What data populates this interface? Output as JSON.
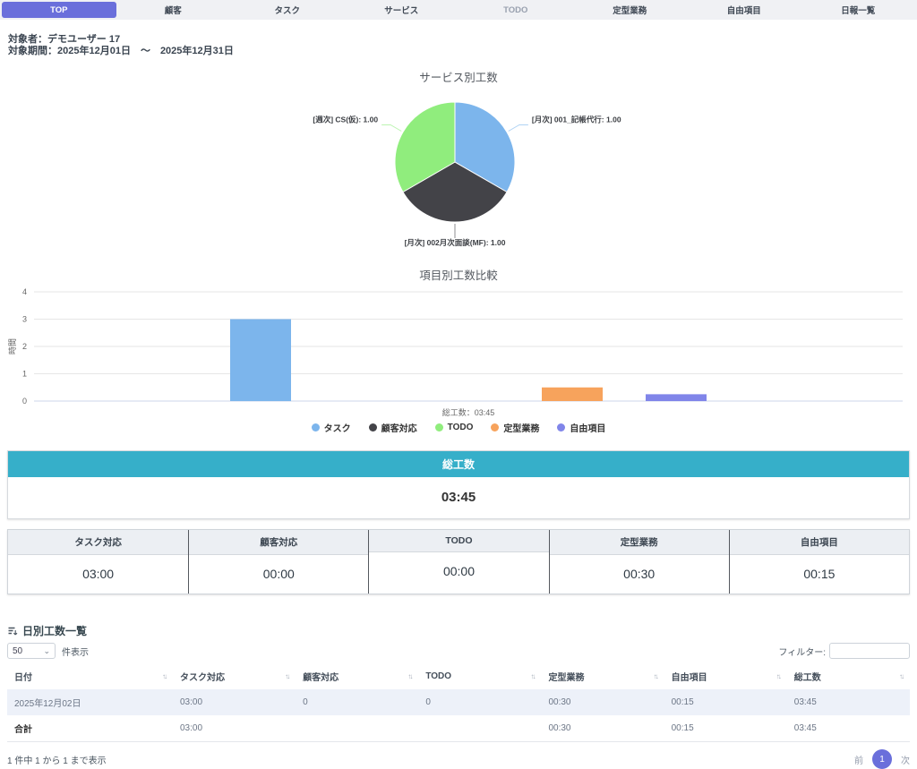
{
  "icons": {
    "sort": "↑↓",
    "chevron_down": "⌄"
  },
  "colors": {
    "accent": "#6a6fdb",
    "teal": "#36afc9",
    "row_alt": "#edf1f9"
  },
  "tabs": [
    {
      "label": "TOP",
      "active": true
    },
    {
      "label": "顧客",
      "active": false
    },
    {
      "label": "タスク",
      "active": false
    },
    {
      "label": "サービス",
      "active": false
    },
    {
      "label": "TODO",
      "active": false
    },
    {
      "label": "定型業務",
      "active": false
    },
    {
      "label": "自由項目",
      "active": false
    },
    {
      "label": "日報一覧",
      "active": false
    }
  ],
  "target": {
    "person": "対象者：デモユーザー 17",
    "period": "対象期間：2025年12月01日　〜　2025年12月31日"
  },
  "chart_data": [
    {
      "type": "pie",
      "title": "サービス別工数",
      "slices": [
        {
          "label": "[月次] 001_記帳代行: 1.00",
          "value": 1.0,
          "color": "#7cb5ec"
        },
        {
          "label": "[月次] 002月次面談(MF): 1.00",
          "value": 1.0,
          "color": "#434348"
        },
        {
          "label": "[週次] CS(仮): 1.00",
          "value": 1.0,
          "color": "#90ed7d"
        }
      ],
      "start_angle": 0,
      "direction": "clockwise"
    },
    {
      "type": "bar",
      "title": "項目別工数比較",
      "categories": [
        "総工数：03:45"
      ],
      "series": [
        {
          "name": "タスク",
          "values": [
            3
          ],
          "color": "#7cb5ec"
        },
        {
          "name": "顧客対応",
          "values": [
            0
          ],
          "color": "#434348"
        },
        {
          "name": "TODO",
          "values": [
            0
          ],
          "color": "#90ed7d"
        },
        {
          "name": "定型業務",
          "values": [
            0.5
          ],
          "color": "#f7a35c"
        },
        {
          "name": "自由項目",
          "values": [
            0.25
          ],
          "color": "#8085e9"
        }
      ],
      "xlabel": "総工数：03:45",
      "ylabel": "時間",
      "ylim": [
        0,
        4
      ],
      "yticks": [
        0,
        1,
        2,
        3,
        4
      ],
      "grid": true,
      "legend_position": "bottom"
    }
  ],
  "total_box": {
    "header": "総工数",
    "value": "03:45"
  },
  "category_table": {
    "columns": [
      {
        "header": "タスク対応",
        "value": "03:00"
      },
      {
        "header": "顧客対応",
        "value": "00:00"
      },
      {
        "header": "TODO",
        "value": "00:00"
      },
      {
        "header": "定型業務",
        "value": "00:30"
      },
      {
        "header": "自由項目",
        "value": "00:15"
      }
    ]
  },
  "daily": {
    "title": "日別工数一覧",
    "page_size": "50",
    "page_size_suffix": "件表示",
    "filter_label": "フィルター:",
    "headers": [
      "日付",
      "タスク対応",
      "顧客対応",
      "TODO",
      "定型業務",
      "自由項目",
      "総工数"
    ],
    "rows": [
      [
        "2025年12月02日",
        "03:00",
        "0",
        "0",
        "00:30",
        "00:15",
        "03:45"
      ],
      [
        "合計",
        "03:00",
        "",
        "",
        "00:30",
        "00:15",
        "03:45"
      ]
    ],
    "footer": "1 件中 1 から 1 まで表示",
    "pagination": {
      "prev": "前",
      "page": "1",
      "next": "次"
    }
  }
}
